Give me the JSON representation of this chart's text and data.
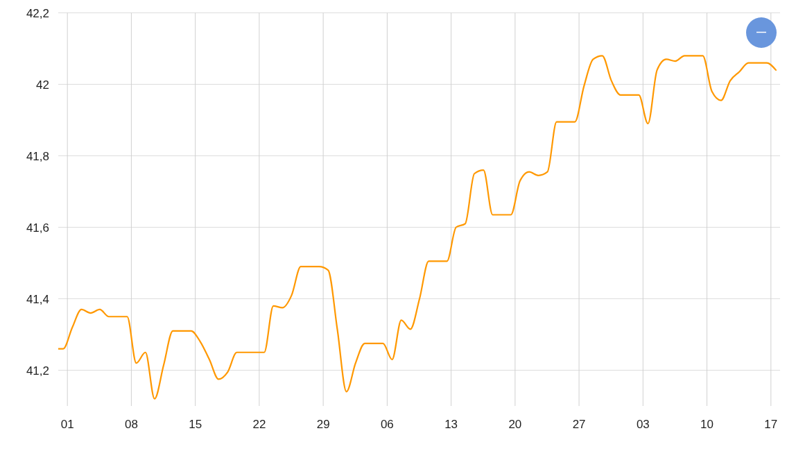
{
  "chart_data": {
    "type": "line",
    "x": [
      "--03-31",
      "--03-31T13:00",
      "--04-01T13:00",
      "--04-02T13:00",
      "--04-03T13:00",
      "--04-04T13:00",
      "--04-05T13:00",
      "--04-06T13:00",
      "--04-07T13:00",
      "--04-08T13:00",
      "--04-09T13:00",
      "--04-10T13:00",
      "--04-11T13:00",
      "--04-12T13:00",
      "--04-13T13:00",
      "--04-14T13:00",
      "--04-15T13:00",
      "--04-16T13:00",
      "--04-17T13:00",
      "--04-18T13:00",
      "--04-19T13:00",
      "--04-20T13:00",
      "--04-21T13:00",
      "--04-22T13:00",
      "--04-23T13:00",
      "--04-24T13:00",
      "--04-25T13:00",
      "--04-26T13:00",
      "--04-27T13:00",
      "--04-28T13:00",
      "--04-29T13:00",
      "--04-30T13:00",
      "--05-01T13:00",
      "--05-02T13:00",
      "--05-03T13:00",
      "--05-04T13:00",
      "--05-05T13:00",
      "--05-06T13:00",
      "--05-07T13:00",
      "--05-08T13:00",
      "--05-09T13:00",
      "--05-10T13:00",
      "--05-11T13:00",
      "--05-12T13:00",
      "--05-13T13:00",
      "--05-14T13:00",
      "--05-15T13:00",
      "--05-16T13:00",
      "--05-17T13:00",
      "--05-18T13:00",
      "--05-19T13:00",
      "--05-20T13:00",
      "--05-21T13:00",
      "--05-22T13:00",
      "--05-23T13:00",
      "--05-24T13:00",
      "--05-25T13:00",
      "--05-26T13:00",
      "--05-27T13:00",
      "--05-28T13:00",
      "--05-29T13:00",
      "--05-30T13:00",
      "--05-31T13:00",
      "--06-01T13:00",
      "--06-02T13:00",
      "--06-03T13:00",
      "--06-04T13:00",
      "--06-05T13:00",
      "--06-06T13:00",
      "--06-07T13:00",
      "--06-08T13:00",
      "--06-09T13:00",
      "--06-10T13:00",
      "--06-11T13:00",
      "--06-12T13:00",
      "--06-13T13:00",
      "--06-14T13:00",
      "--06-15T13:00",
      "--06-16T13:00",
      "--06-17T13:00"
    ],
    "series": [
      {
        "color": "#ff9800",
        "values": [
          41.26,
          41.26,
          41.32,
          41.37,
          41.36,
          41.37,
          41.35,
          41.35,
          41.35,
          41.22,
          41.25,
          41.12,
          41.215,
          41.31,
          41.31,
          41.31,
          41.28,
          41.23,
          41.175,
          41.195,
          41.25,
          41.25,
          41.25,
          41.25,
          41.38,
          41.375,
          41.41,
          41.49,
          41.49,
          41.49,
          41.48,
          41.315,
          41.14,
          41.22,
          41.275,
          41.275,
          41.275,
          41.23,
          41.34,
          41.315,
          41.4,
          41.505,
          41.505,
          41.505,
          41.6,
          41.61,
          41.75,
          41.76,
          41.635,
          41.635,
          41.635,
          41.73,
          41.755,
          41.745,
          41.755,
          41.895,
          41.895,
          41.895,
          41.995,
          42.07,
          42.08,
          42.01,
          41.97,
          41.97,
          41.97,
          41.89,
          42.04,
          42.07,
          42.065,
          42.08,
          42.08,
          42.08,
          41.98,
          41.955,
          42.01,
          42.035,
          42.06,
          42.06,
          42.06,
          42.04
        ]
      }
    ],
    "xlim": [
      "--03-31",
      "--06-18"
    ],
    "xticks": [
      {
        "value": "--04-01",
        "label": "01"
      },
      {
        "value": "--04-08",
        "label": "08"
      },
      {
        "value": "--04-15",
        "label": "15"
      },
      {
        "value": "--04-22",
        "label": "22"
      },
      {
        "value": "--04-29",
        "label": "29"
      },
      {
        "value": "--05-06",
        "label": "06"
      },
      {
        "value": "--05-13",
        "label": "13"
      },
      {
        "value": "--05-20",
        "label": "20"
      },
      {
        "value": "--05-27",
        "label": "27"
      },
      {
        "value": "--06-03",
        "label": "03"
      },
      {
        "value": "--06-10",
        "label": "10"
      },
      {
        "value": "--06-17",
        "label": "17"
      }
    ],
    "ylim": [
      41.1,
      42.2
    ],
    "yticks": [
      {
        "value": 41.2,
        "label": "41,2"
      },
      {
        "value": 41.4,
        "label": "41,4"
      },
      {
        "value": 41.6,
        "label": "41,6"
      },
      {
        "value": 41.8,
        "label": "41,8"
      },
      42,
      {
        "value": 42.2,
        "label": "42,2"
      }
    ],
    "grid": true
  }
}
